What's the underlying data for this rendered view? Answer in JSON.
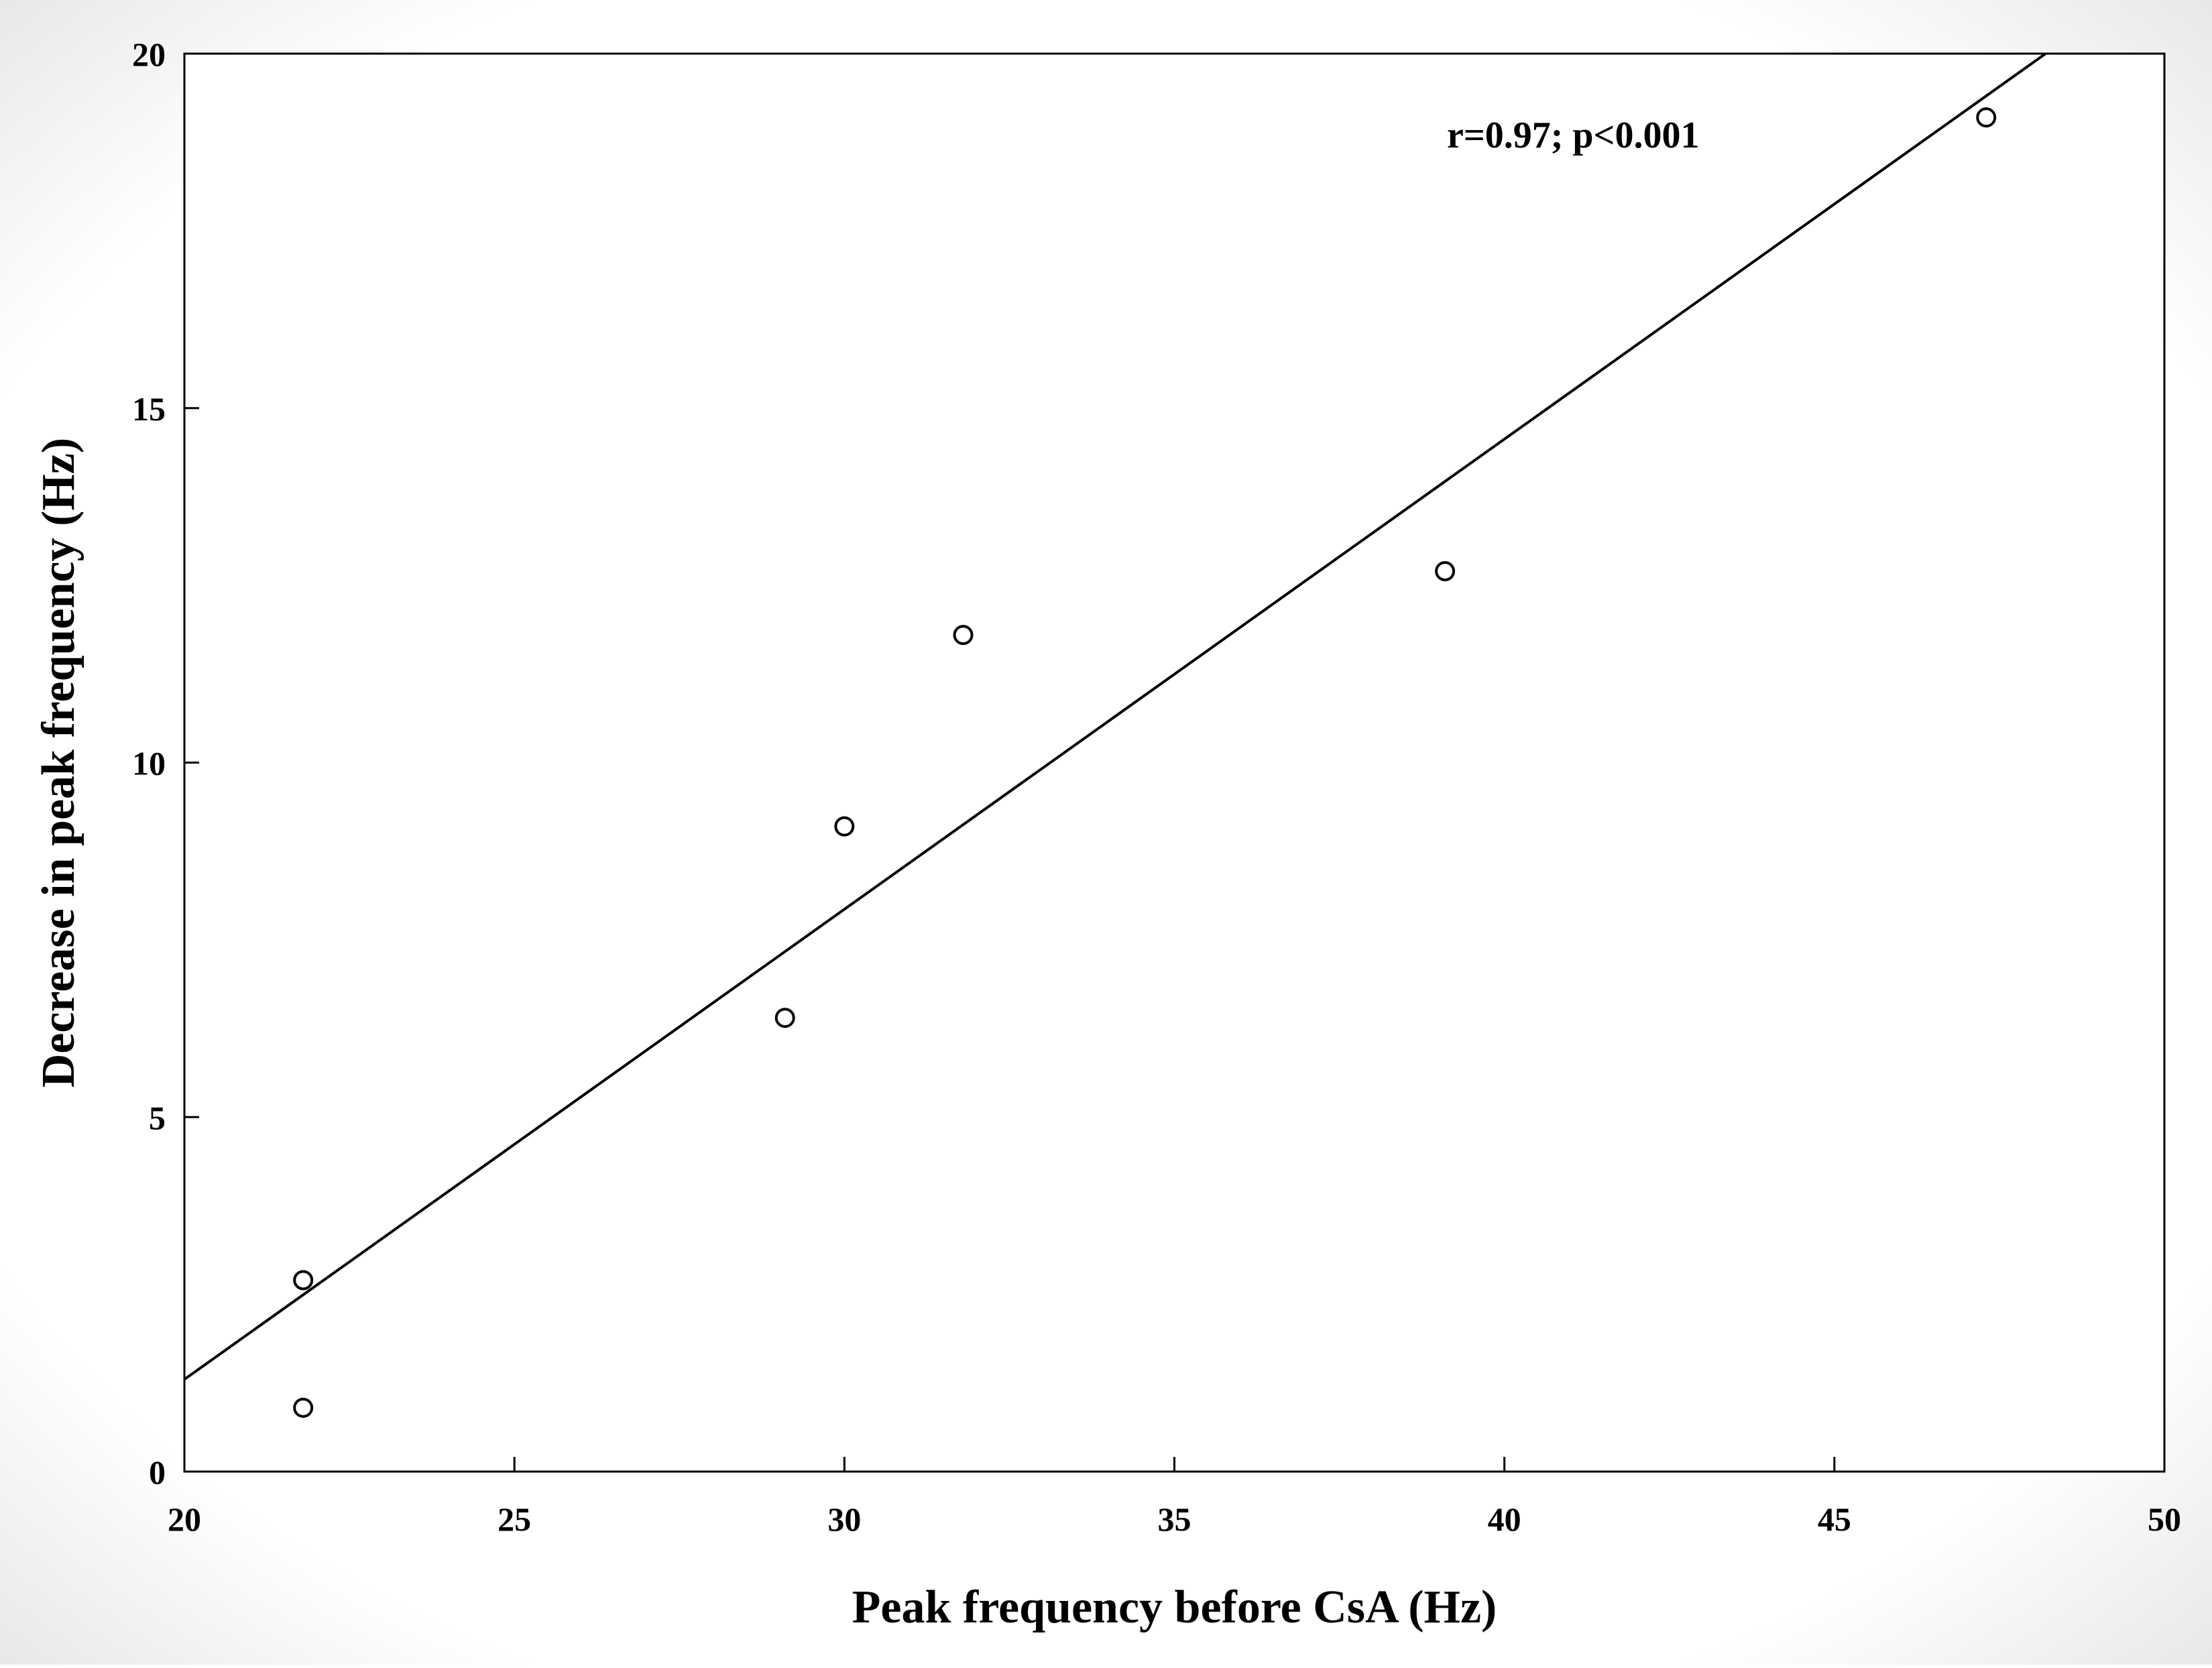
{
  "chart_data": {
    "type": "scatter",
    "title": "",
    "xlabel": "Peak frequency before CsA (Hz)",
    "ylabel": "Decrease in peak frequency (Hz)",
    "xlim": [
      20,
      50
    ],
    "ylim": [
      0,
      20
    ],
    "x_ticks": [
      20,
      25,
      30,
      35,
      40,
      45,
      50
    ],
    "y_ticks": [
      0,
      5,
      10,
      15,
      20
    ],
    "grid": false,
    "legend": "none",
    "series": [
      {
        "points": [
          {
            "x": 21.8,
            "y": 2.7
          },
          {
            "x": 21.8,
            "y": 0.9
          },
          {
            "x": 29.1,
            "y": 6.4
          },
          {
            "x": 30.0,
            "y": 9.1
          },
          {
            "x": 31.8,
            "y": 11.8
          },
          {
            "x": 39.1,
            "y": 12.7
          },
          {
            "x": 47.3,
            "y": 19.1
          }
        ],
        "marker": "open-circle",
        "color": "#000000"
      }
    ],
    "regression_line": {
      "from": {
        "x": 20.0,
        "y": 1.3
      },
      "to": {
        "x": 48.2,
        "y": 20.0
      },
      "color": "#000000"
    },
    "annotations": [
      {
        "text": "r=0.97; p<0.001",
        "x": 40.0,
        "y": 18.9
      }
    ]
  }
}
